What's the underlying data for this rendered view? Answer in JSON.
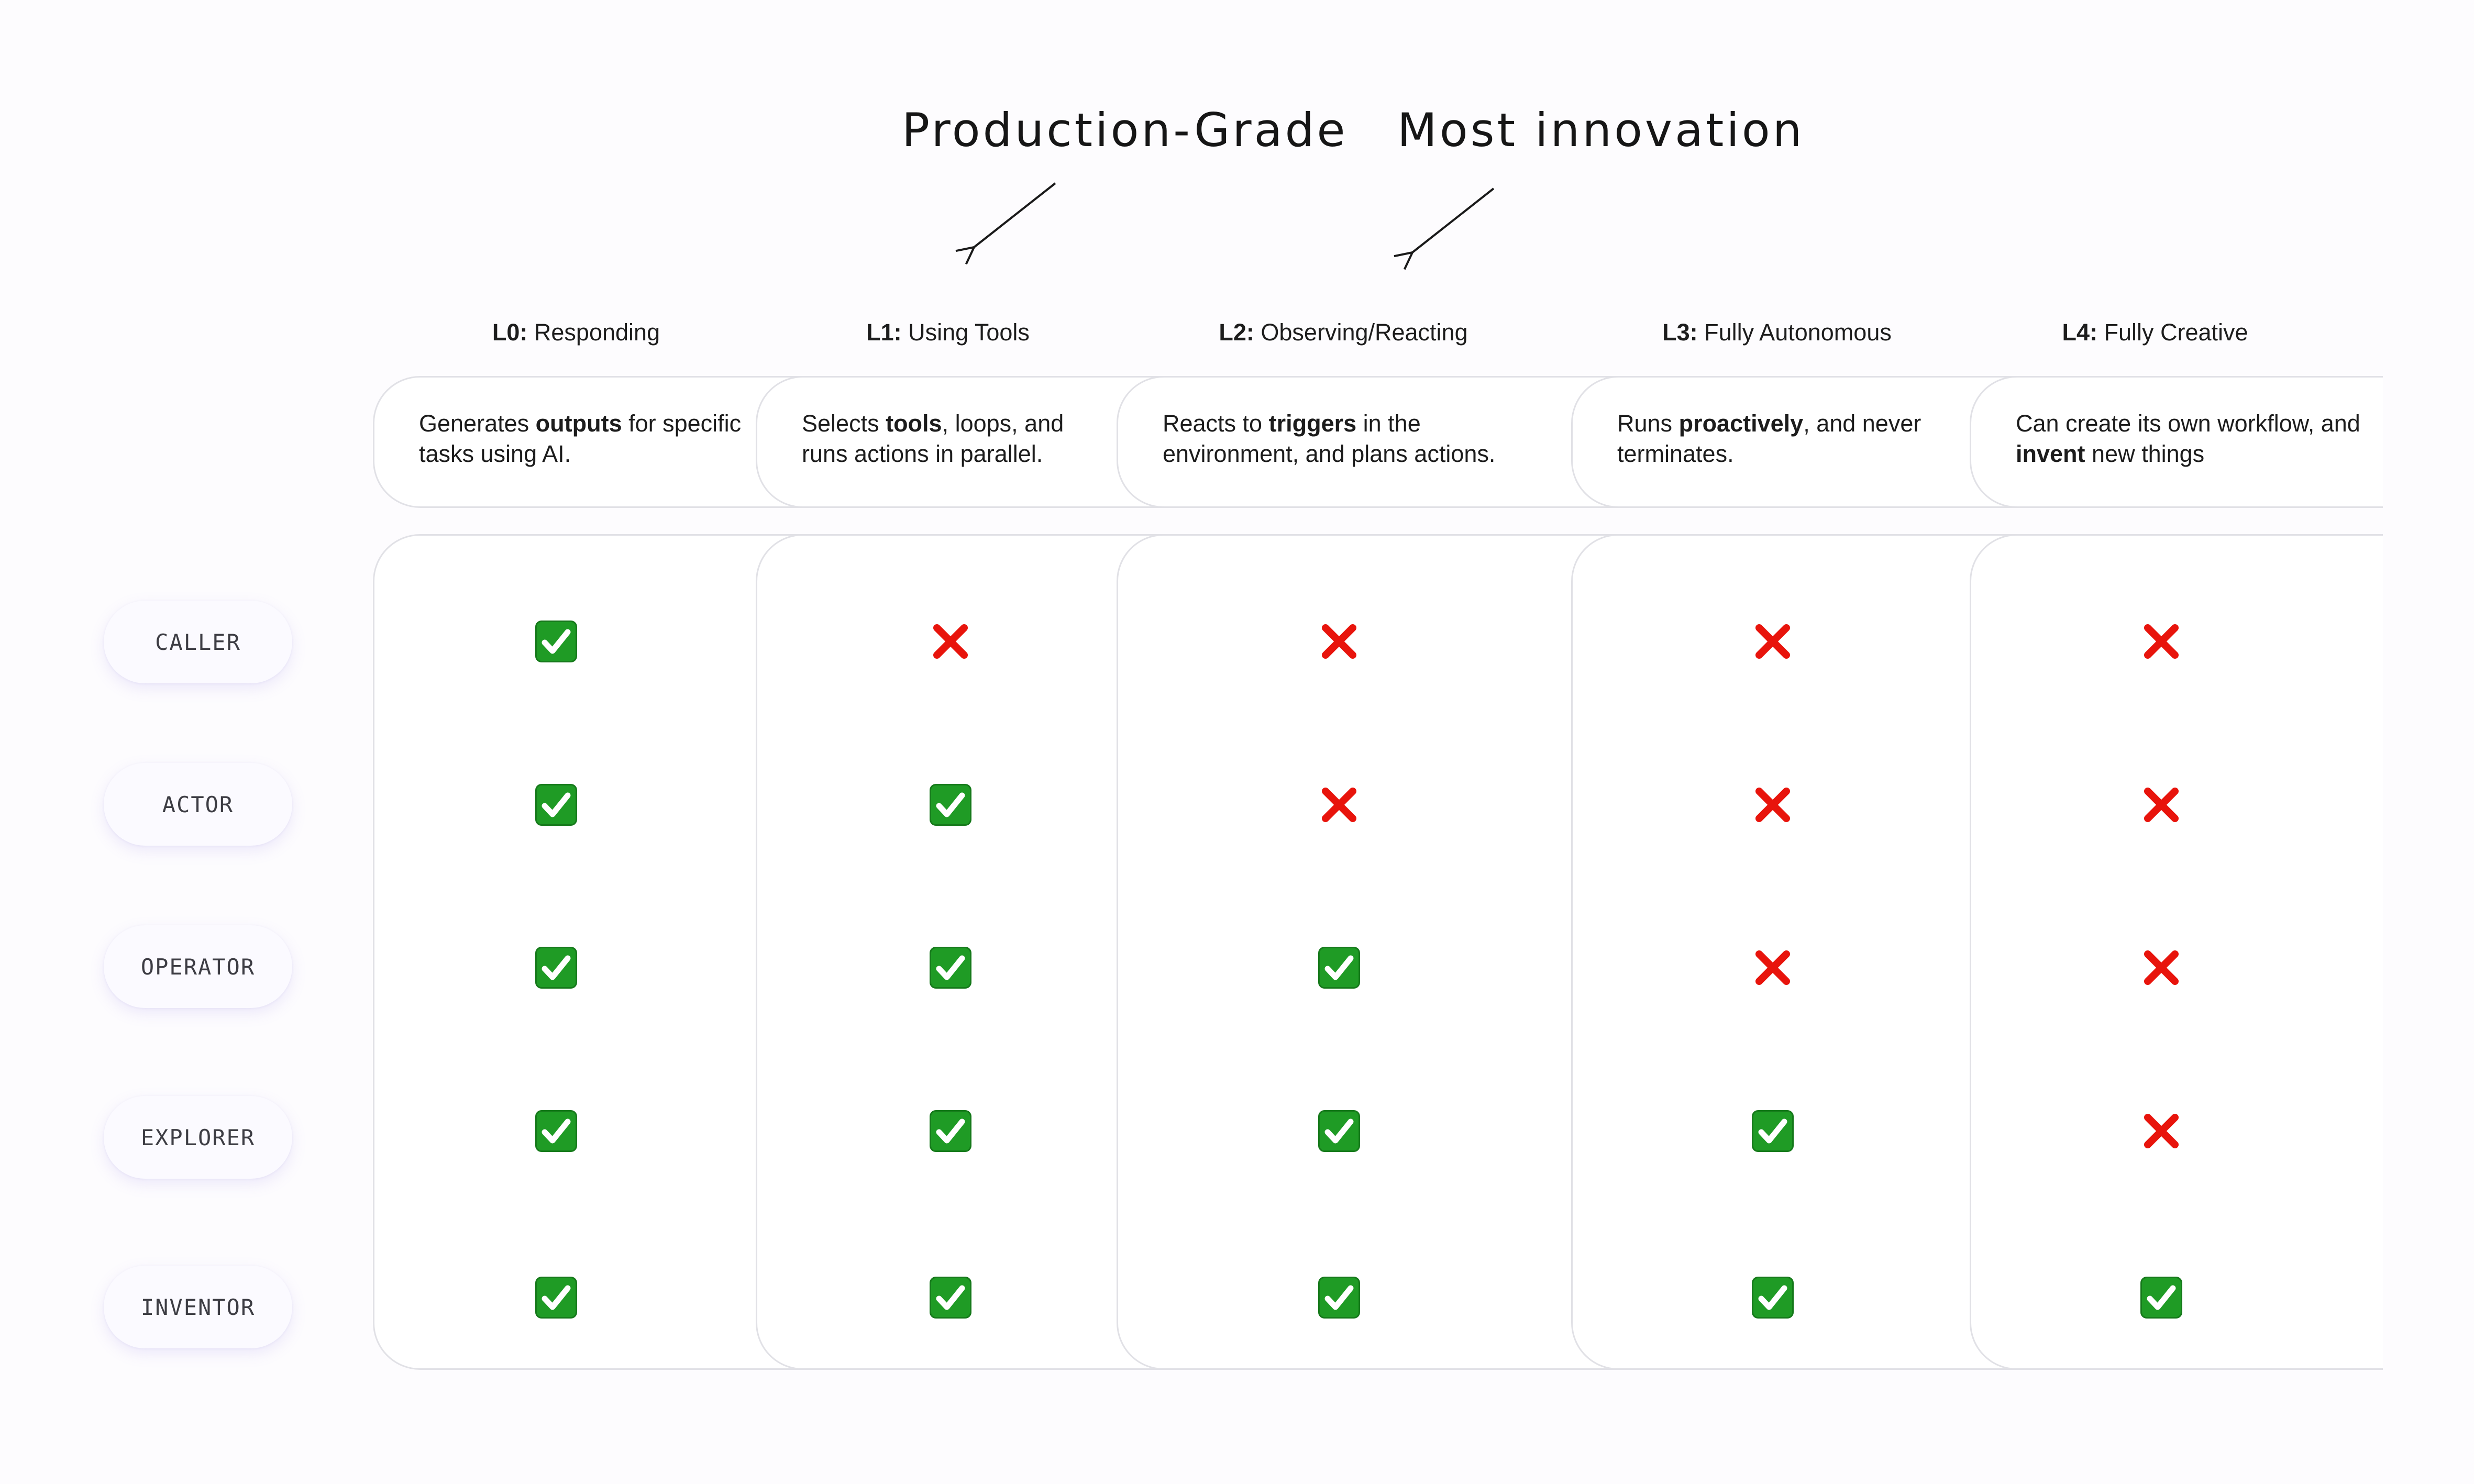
{
  "annotations": [
    {
      "text": "Production-Grade",
      "points_to": "L1"
    },
    {
      "text": "Most innovation",
      "points_to": "L2"
    }
  ],
  "levels": [
    {
      "id": "L0",
      "name": "Responding",
      "description": [
        [
          "Generates ",
          false
        ],
        [
          "outputs",
          true
        ],
        [
          " for specific tasks using AI.",
          false
        ]
      ]
    },
    {
      "id": "L1",
      "name": "Using Tools",
      "description": [
        [
          "Selects ",
          false
        ],
        [
          "tools",
          true
        ],
        [
          ", loops, and runs actions in parallel.",
          false
        ]
      ]
    },
    {
      "id": "L2",
      "name": "Observing/Reacting",
      "description": [
        [
          "Reacts to ",
          false
        ],
        [
          "triggers",
          true
        ],
        [
          " in the environment, and plans actions.",
          false
        ]
      ]
    },
    {
      "id": "L3",
      "name": "Fully Autonomous",
      "description": [
        [
          "Runs ",
          false
        ],
        [
          "proactively",
          true
        ],
        [
          ", and never terminates.",
          false
        ]
      ]
    },
    {
      "id": "L4",
      "name": "Fully Creative",
      "description": [
        [
          "Can create its own workflow, and ",
          false
        ],
        [
          "invent",
          true
        ],
        [
          " new things",
          false
        ]
      ]
    }
  ],
  "roles": [
    {
      "label": "CALLER",
      "supports": [
        true,
        false,
        false,
        false,
        false
      ]
    },
    {
      "label": "ACTOR",
      "supports": [
        true,
        true,
        false,
        false,
        false
      ]
    },
    {
      "label": "OPERATOR",
      "supports": [
        true,
        true,
        true,
        false,
        false
      ]
    },
    {
      "label": "EXPLORER",
      "supports": [
        true,
        true,
        true,
        true,
        false
      ]
    },
    {
      "label": "INVENTOR",
      "supports": [
        true,
        true,
        true,
        true,
        true
      ]
    }
  ],
  "marks": {
    "yes": {
      "icon": "check-mark-icon",
      "color": "#1f9b25"
    },
    "no": {
      "icon": "cross-mark-icon",
      "color": "#e8140c"
    }
  },
  "colors": {
    "card_border": "#e1e1e6",
    "background": "#fdfcfe"
  }
}
